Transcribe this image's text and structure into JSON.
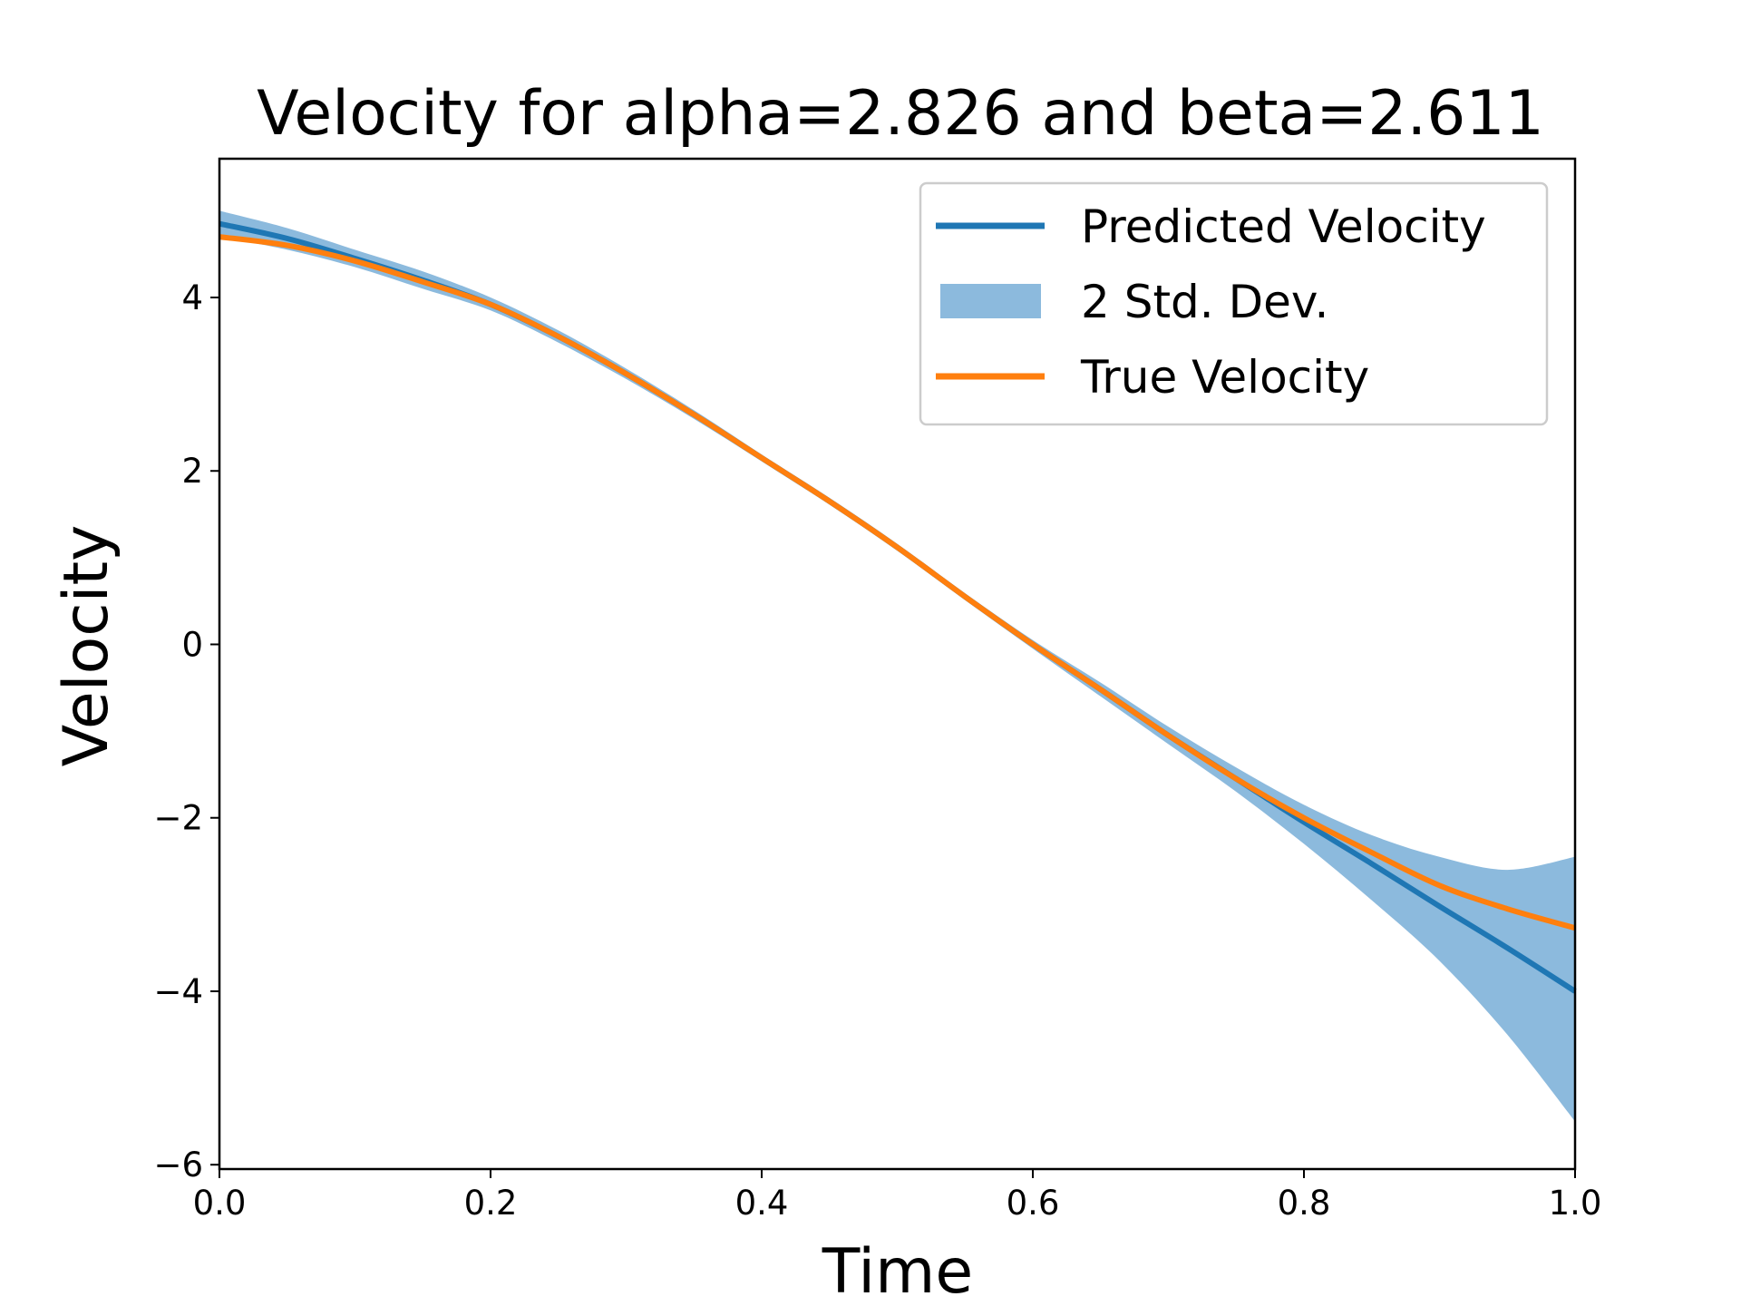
{
  "chart_data": {
    "type": "line",
    "title": "Velocity for alpha=2.826 and beta=2.611",
    "xlabel": "Time",
    "ylabel": "Velocity",
    "xlim": [
      0.0,
      1.0
    ],
    "ylim": [
      -6.05,
      5.6
    ],
    "xticks": [
      0.0,
      0.2,
      0.4,
      0.6,
      0.8,
      1.0
    ],
    "xtick_labels": [
      "0.0",
      "0.2",
      "0.4",
      "0.6",
      "0.8",
      "1.0"
    ],
    "yticks": [
      -6,
      -4,
      -2,
      0,
      2,
      4
    ],
    "ytick_labels": [
      "−6",
      "−4",
      "−2",
      "0",
      "2",
      "4"
    ],
    "grid": false,
    "legend_position": "top-right",
    "colors": {
      "predicted": "#1f77b4",
      "band": "#7fb2d9",
      "true": "#ff7f0e"
    },
    "series": [
      {
        "name": "Predicted Velocity",
        "x": [
          0.0,
          0.05,
          0.1,
          0.15,
          0.2,
          0.25,
          0.3,
          0.35,
          0.4,
          0.45,
          0.5,
          0.55,
          0.6,
          0.65,
          0.7,
          0.75,
          0.8,
          0.85,
          0.9,
          0.95,
          1.0
        ],
        "y": [
          4.85,
          4.68,
          4.45,
          4.2,
          3.92,
          3.55,
          3.12,
          2.65,
          2.15,
          1.65,
          1.12,
          0.55,
          0.0,
          -0.52,
          -1.05,
          -1.55,
          -2.05,
          -2.53,
          -3.02,
          -3.5,
          -4.0
        ]
      },
      {
        "name": "True Velocity",
        "x": [
          0.0,
          0.05,
          0.1,
          0.15,
          0.2,
          0.25,
          0.3,
          0.35,
          0.4,
          0.45,
          0.5,
          0.55,
          0.6,
          0.65,
          0.7,
          0.75,
          0.8,
          0.85,
          0.9,
          0.95,
          1.0
        ],
        "y": [
          4.7,
          4.6,
          4.42,
          4.18,
          3.92,
          3.55,
          3.12,
          2.65,
          2.15,
          1.65,
          1.12,
          0.55,
          0.0,
          -0.52,
          -1.05,
          -1.55,
          -2.0,
          -2.4,
          -2.78,
          -3.05,
          -3.27
        ]
      }
    ],
    "band": {
      "name": "2 Std. Dev.",
      "x": [
        0.0,
        0.05,
        0.1,
        0.15,
        0.2,
        0.25,
        0.3,
        0.35,
        0.4,
        0.45,
        0.5,
        0.55,
        0.6,
        0.65,
        0.7,
        0.75,
        0.8,
        0.85,
        0.9,
        0.95,
        1.0
      ],
      "lower": [
        4.7,
        4.55,
        4.35,
        4.1,
        3.85,
        3.48,
        3.06,
        2.6,
        2.11,
        1.61,
        1.08,
        0.51,
        -0.05,
        -0.6,
        -1.15,
        -1.7,
        -2.3,
        -2.95,
        -3.65,
        -4.5,
        -5.5
      ],
      "upper": [
        5.0,
        4.8,
        4.55,
        4.3,
        4.0,
        3.62,
        3.18,
        2.7,
        2.19,
        1.69,
        1.16,
        0.59,
        0.05,
        -0.44,
        -0.95,
        -1.42,
        -1.85,
        -2.2,
        -2.45,
        -2.6,
        -2.45
      ]
    },
    "legend": [
      "Predicted Velocity",
      "2 Std. Dev.",
      "True Velocity"
    ]
  }
}
